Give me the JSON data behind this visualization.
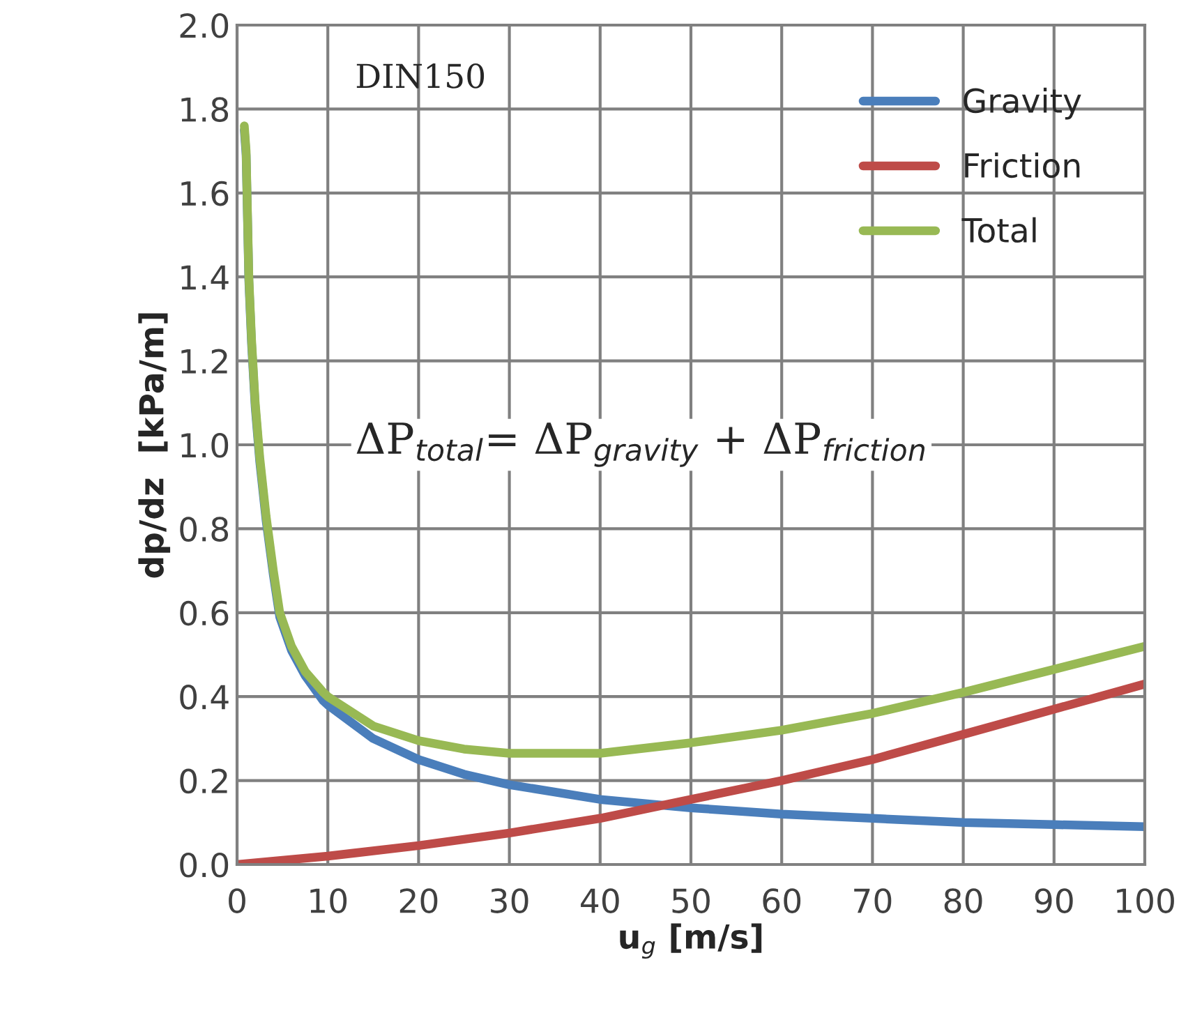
{
  "chart_data": {
    "type": "line",
    "xlabel": "u$_{g}$ [m/s]",
    "ylabel": "dp/dz  [kPa/m]",
    "xlim": [
      0,
      100
    ],
    "xticks": [
      0,
      10,
      20,
      30,
      40,
      50,
      60,
      70,
      80,
      90,
      100
    ],
    "ylim": [
      0,
      2.0
    ],
    "yticks": [
      {
        "value": 0,
        "label": "0.0"
      },
      {
        "value": 0.2,
        "label": "0.2"
      },
      {
        "value": 0.4,
        "label": "0.4"
      },
      {
        "value": 0.6,
        "label": "0.6"
      },
      {
        "value": 0.8,
        "label": "0.8"
      },
      {
        "value": 1.0,
        "label": "1.0"
      },
      {
        "value": 1.2,
        "label": "1.2"
      },
      {
        "value": 1.4,
        "label": "1.4"
      },
      {
        "value": 1.6,
        "label": "1.6"
      },
      {
        "value": 1.8,
        "label": "1.8"
      },
      {
        "value": 2.0,
        "label": "2.0"
      }
    ],
    "grid": true,
    "legend": "top right",
    "marker": "none",
    "line_style": "solid",
    "annotations": [
      "DIN150",
      "ΔP$_{total}$= ΔP$_{gravity}$ + ΔP$_{friction}$"
    ],
    "series": [
      {
        "name": "Gravity",
        "color": "#4a7ebb",
        "x": [
          0.8,
          1.0,
          1.3,
          1.6,
          2,
          2.5,
          3.2,
          4,
          4.7,
          6,
          7.5,
          9.5,
          10,
          15,
          20,
          25,
          30,
          40,
          50,
          60,
          70,
          80,
          90,
          100
        ],
        "values": [
          1.75,
          1.69,
          1.39,
          1.24,
          1.09,
          0.96,
          0.82,
          0.69,
          0.59,
          0.51,
          0.45,
          0.39,
          0.38,
          0.3,
          0.25,
          0.215,
          0.19,
          0.155,
          0.135,
          0.12,
          0.11,
          0.1,
          0.095,
          0.09
        ]
      },
      {
        "name": "Friction",
        "color": "#be4b48",
        "x": [
          0,
          10,
          20,
          30,
          40,
          50,
          60,
          70,
          80,
          90,
          100
        ],
        "values": [
          0,
          0.02,
          0.045,
          0.075,
          0.11,
          0.155,
          0.2,
          0.25,
          0.31,
          0.37,
          0.43
        ]
      },
      {
        "name": "Total",
        "color": "#98b954",
        "x": [
          0.8,
          1.0,
          1.3,
          1.6,
          2,
          2.5,
          3.2,
          4,
          4.7,
          6,
          7.5,
          9.5,
          10,
          15,
          20,
          25,
          30,
          40,
          50,
          60,
          70,
          80,
          90,
          100
        ],
        "values": [
          1.76,
          1.7,
          1.4,
          1.25,
          1.1,
          0.97,
          0.83,
          0.7,
          0.6,
          0.52,
          0.46,
          0.41,
          0.4,
          0.33,
          0.295,
          0.275,
          0.265,
          0.265,
          0.29,
          0.32,
          0.36,
          0.41,
          0.465,
          0.52
        ]
      }
    ]
  }
}
